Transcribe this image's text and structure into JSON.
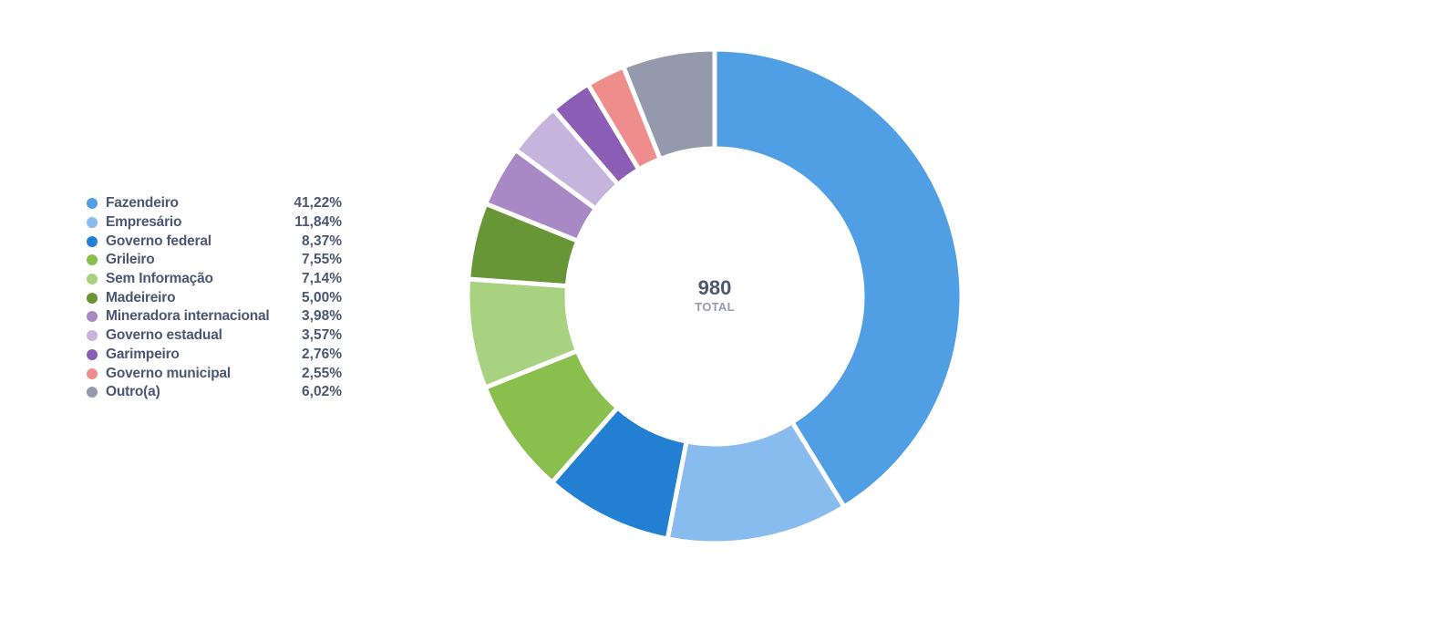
{
  "chart_data": {
    "type": "pie",
    "total": "980",
    "total_label": "TOTAL",
    "categories": [
      "Fazendeiro",
      "Empresário",
      "Governo federal",
      "Grileiro",
      "Sem Informação",
      "Madeireiro",
      "Mineradora internacional",
      "Governo estadual",
      "Garimpeiro",
      "Governo municipal",
      "Outro(a)"
    ],
    "values": [
      41.22,
      11.84,
      8.37,
      7.55,
      7.14,
      5.0,
      3.98,
      3.57,
      2.76,
      2.55,
      6.02
    ],
    "value_labels": [
      "41,22%",
      "11,84%",
      "8,37%",
      "7,55%",
      "7,14%",
      "5,00%",
      "3,98%",
      "3,57%",
      "2,76%",
      "2,55%",
      "6,02%"
    ],
    "colors": [
      "#509ee3",
      "#88bbee",
      "#227fd2",
      "#88bf4d",
      "#a8d27f",
      "#689636",
      "#a989c5",
      "#c7b4dc",
      "#8c5db4",
      "#ef8c8c",
      "#949aab"
    ],
    "legend_position": "left",
    "donut": true
  }
}
